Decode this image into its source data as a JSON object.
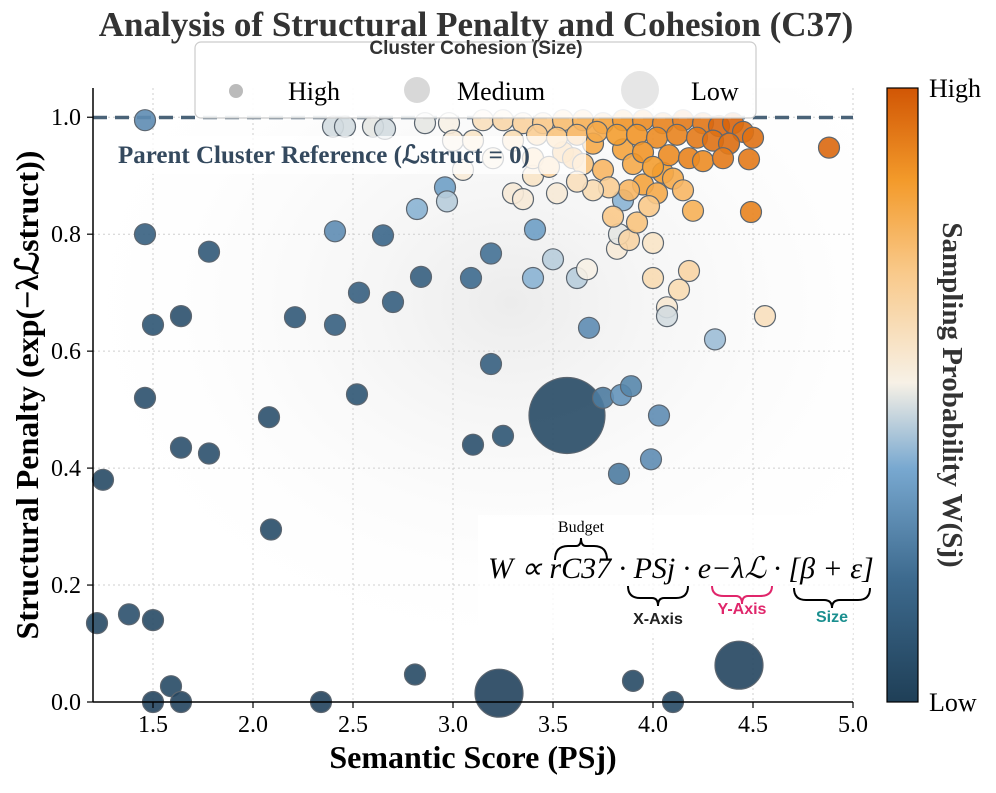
{
  "chart_data": {
    "type": "scatter",
    "title": "Analysis of Structural Penalty and Cohesion (C37)",
    "xlabel": "Semantic Score (PSj)",
    "ylabel": "Structural Penalty (exp(−λℒstruct))",
    "xlim": [
      1.2,
      5.0
    ],
    "ylim": [
      0.0,
      1.05
    ],
    "xticks": [
      "1.5",
      "2.0",
      "2.5",
      "3.0",
      "3.5",
      "4.0",
      "4.5",
      "5.0"
    ],
    "yticks": [
      "0.0",
      "0.2",
      "0.4",
      "0.6",
      "0.8",
      "1.0"
    ],
    "grid": true,
    "reference_line": {
      "y": 1.0,
      "label": "Parent Cluster Reference (ℒstruct = 0)"
    },
    "legend": {
      "title": "Cluster Cohesion (Size)",
      "entries": [
        "High",
        "Medium",
        "Low"
      ],
      "placement": "top"
    },
    "colorbar": {
      "label": "Sampling Probability W(Sj)",
      "high": "High",
      "low": "Low"
    },
    "annotation": {
      "formula": "W ∝ rC37 · PSj · e−λℒ · [β + ε]",
      "budget": "Budget",
      "x_axis": "X-Axis",
      "y_axis": "Y-Axis",
      "size": "Size"
    },
    "points": [
      {
        "x": 3.57,
        "y": 0.49,
        "w": 0.05,
        "s": "XL"
      },
      {
        "x": 3.23,
        "y": 0.015,
        "w": 0.02,
        "s": "L"
      },
      {
        "x": 4.43,
        "y": 0.063,
        "w": 0.03,
        "s": "L"
      },
      {
        "x": 2.34,
        "y": 0.0,
        "w": 0.02,
        "s": "S"
      },
      {
        "x": 1.46,
        "y": 0.995,
        "w": 0.3,
        "s": "S"
      },
      {
        "x": 1.46,
        "y": 0.8,
        "w": 0.15,
        "s": "S"
      },
      {
        "x": 1.5,
        "y": 0.645,
        "w": 0.1,
        "s": "S"
      },
      {
        "x": 1.64,
        "y": 0.66,
        "w": 0.08,
        "s": "S"
      },
      {
        "x": 1.78,
        "y": 0.77,
        "w": 0.12,
        "s": "S"
      },
      {
        "x": 1.46,
        "y": 0.52,
        "w": 0.08,
        "s": "S"
      },
      {
        "x": 1.64,
        "y": 0.435,
        "w": 0.08,
        "s": "S"
      },
      {
        "x": 1.78,
        "y": 0.425,
        "w": 0.08,
        "s": "S"
      },
      {
        "x": 1.25,
        "y": 0.38,
        "w": 0.05,
        "s": "S"
      },
      {
        "x": 1.38,
        "y": 0.15,
        "w": 0.08,
        "s": "S"
      },
      {
        "x": 1.22,
        "y": 0.135,
        "w": 0.05,
        "s": "S"
      },
      {
        "x": 1.5,
        "y": 0.14,
        "w": 0.05,
        "s": "S"
      },
      {
        "x": 1.59,
        "y": 0.027,
        "w": 0.05,
        "s": "S"
      },
      {
        "x": 1.5,
        "y": 0.0,
        "w": 0.03,
        "s": "S"
      },
      {
        "x": 1.64,
        "y": 0.0,
        "w": 0.03,
        "s": "S"
      },
      {
        "x": 2.08,
        "y": 0.487,
        "w": 0.08,
        "s": "S"
      },
      {
        "x": 2.09,
        "y": 0.295,
        "w": 0.06,
        "s": "S"
      },
      {
        "x": 2.21,
        "y": 0.658,
        "w": 0.12,
        "s": "S"
      },
      {
        "x": 2.41,
        "y": 0.805,
        "w": 0.3,
        "s": "S"
      },
      {
        "x": 2.41,
        "y": 0.645,
        "w": 0.15,
        "s": "S"
      },
      {
        "x": 2.52,
        "y": 0.526,
        "w": 0.1,
        "s": "S"
      },
      {
        "x": 2.53,
        "y": 0.7,
        "w": 0.15,
        "s": "S"
      },
      {
        "x": 2.65,
        "y": 0.798,
        "w": 0.18,
        "s": "S"
      },
      {
        "x": 2.7,
        "y": 0.684,
        "w": 0.15,
        "s": "S"
      },
      {
        "x": 2.81,
        "y": 0.047,
        "w": 0.05,
        "s": "S"
      },
      {
        "x": 2.84,
        "y": 0.727,
        "w": 0.15,
        "s": "S"
      },
      {
        "x": 2.82,
        "y": 0.843,
        "w": 0.4,
        "s": "S"
      },
      {
        "x": 2.4,
        "y": 0.984,
        "w": 0.48,
        "s": "S"
      },
      {
        "x": 2.46,
        "y": 0.984,
        "w": 0.48,
        "s": "S"
      },
      {
        "x": 2.6,
        "y": 0.984,
        "w": 0.5,
        "s": "S"
      },
      {
        "x": 2.66,
        "y": 0.98,
        "w": 0.48,
        "s": "S"
      },
      {
        "x": 2.86,
        "y": 0.99,
        "w": 0.5,
        "s": "S"
      },
      {
        "x": 2.98,
        "y": 0.99,
        "w": 0.52,
        "s": "S"
      },
      {
        "x": 2.96,
        "y": 0.88,
        "w": 0.35,
        "s": "S"
      },
      {
        "x": 2.97,
        "y": 0.856,
        "w": 0.45,
        "s": "S"
      },
      {
        "x": 3.0,
        "y": 0.96,
        "w": 0.55,
        "s": "S"
      },
      {
        "x": 3.05,
        "y": 0.91,
        "w": 0.55,
        "s": "S"
      },
      {
        "x": 3.09,
        "y": 0.725,
        "w": 0.2,
        "s": "S"
      },
      {
        "x": 3.1,
        "y": 0.44,
        "w": 0.08,
        "s": "S"
      },
      {
        "x": 3.19,
        "y": 0.578,
        "w": 0.15,
        "s": "S"
      },
      {
        "x": 3.19,
        "y": 0.767,
        "w": 0.22,
        "s": "S"
      },
      {
        "x": 3.25,
        "y": 0.455,
        "w": 0.1,
        "s": "S"
      },
      {
        "x": 3.3,
        "y": 0.87,
        "w": 0.55,
        "s": "S"
      },
      {
        "x": 3.35,
        "y": 0.86,
        "w": 0.55,
        "s": "S"
      },
      {
        "x": 3.4,
        "y": 0.725,
        "w": 0.4,
        "s": "S"
      },
      {
        "x": 3.41,
        "y": 0.808,
        "w": 0.35,
        "s": "S"
      },
      {
        "x": 3.4,
        "y": 0.9,
        "w": 0.58,
        "s": "S"
      },
      {
        "x": 3.5,
        "y": 0.757,
        "w": 0.45,
        "s": "S"
      },
      {
        "x": 3.52,
        "y": 0.87,
        "w": 0.55,
        "s": "S"
      },
      {
        "x": 3.62,
        "y": 0.725,
        "w": 0.45,
        "s": "S"
      },
      {
        "x": 3.67,
        "y": 0.74,
        "w": 0.52,
        "s": "S"
      },
      {
        "x": 3.68,
        "y": 0.64,
        "w": 0.3,
        "s": "S"
      },
      {
        "x": 3.75,
        "y": 0.52,
        "w": 0.25,
        "s": "S"
      },
      {
        "x": 3.83,
        "y": 0.39,
        "w": 0.25,
        "s": "S"
      },
      {
        "x": 3.84,
        "y": 0.525,
        "w": 0.32,
        "s": "S"
      },
      {
        "x": 3.89,
        "y": 0.54,
        "w": 0.28,
        "s": "S"
      },
      {
        "x": 3.9,
        "y": 0.036,
        "w": 0.05,
        "s": "S"
      },
      {
        "x": 4.03,
        "y": 0.49,
        "w": 0.3,
        "s": "S"
      },
      {
        "x": 3.99,
        "y": 0.415,
        "w": 0.3,
        "s": "S"
      },
      {
        "x": 4.1,
        "y": 0.0,
        "w": 0.05,
        "s": "S"
      },
      {
        "x": 3.82,
        "y": 0.775,
        "w": 0.55,
        "s": "S"
      },
      {
        "x": 3.83,
        "y": 0.8,
        "w": 0.5,
        "s": "S"
      },
      {
        "x": 3.85,
        "y": 0.858,
        "w": 0.4,
        "s": "S"
      },
      {
        "x": 3.8,
        "y": 0.83,
        "w": 0.7,
        "s": "S"
      },
      {
        "x": 3.88,
        "y": 0.79,
        "w": 0.65,
        "s": "S"
      },
      {
        "x": 3.92,
        "y": 0.82,
        "w": 0.72,
        "s": "S"
      },
      {
        "x": 4.0,
        "y": 0.785,
        "w": 0.58,
        "s": "S"
      },
      {
        "x": 4.0,
        "y": 0.725,
        "w": 0.62,
        "s": "S"
      },
      {
        "x": 4.07,
        "y": 0.675,
        "w": 0.56,
        "s": "S"
      },
      {
        "x": 4.07,
        "y": 0.66,
        "w": 0.48,
        "s": "S"
      },
      {
        "x": 4.13,
        "y": 0.705,
        "w": 0.62,
        "s": "S"
      },
      {
        "x": 4.18,
        "y": 0.737,
        "w": 0.65,
        "s": "S"
      },
      {
        "x": 4.31,
        "y": 0.62,
        "w": 0.42,
        "s": "S"
      },
      {
        "x": 4.56,
        "y": 0.66,
        "w": 0.6,
        "s": "S"
      },
      {
        "x": 4.49,
        "y": 0.838,
        "w": 0.9,
        "s": "S"
      },
      {
        "x": 4.88,
        "y": 0.948,
        "w": 0.96,
        "s": "S"
      },
      {
        "x": 4.48,
        "y": 0.928,
        "w": 0.92,
        "s": "S"
      },
      {
        "x": 3.55,
        "y": 0.94,
        "w": 0.75,
        "s": "S"
      },
      {
        "x": 3.6,
        "y": 0.93,
        "w": 0.78,
        "s": "S"
      },
      {
        "x": 3.65,
        "y": 0.92,
        "w": 0.72,
        "s": "S"
      },
      {
        "x": 3.7,
        "y": 0.955,
        "w": 0.8,
        "s": "S"
      },
      {
        "x": 3.75,
        "y": 0.91,
        "w": 0.76,
        "s": "S"
      },
      {
        "x": 3.85,
        "y": 0.945,
        "w": 0.82,
        "s": "S"
      },
      {
        "x": 3.9,
        "y": 0.92,
        "w": 0.8,
        "s": "S"
      },
      {
        "x": 3.95,
        "y": 0.885,
        "w": 0.82,
        "s": "S"
      },
      {
        "x": 4.05,
        "y": 0.905,
        "w": 0.84,
        "s": "S"
      },
      {
        "x": 4.1,
        "y": 0.895,
        "w": 0.8,
        "s": "S"
      },
      {
        "x": 4.15,
        "y": 0.875,
        "w": 0.76,
        "s": "S"
      },
      {
        "x": 4.2,
        "y": 0.84,
        "w": 0.78,
        "s": "S"
      },
      {
        "x": 4.02,
        "y": 0.87,
        "w": 0.8,
        "s": "S"
      },
      {
        "x": 3.98,
        "y": 0.848,
        "w": 0.7,
        "s": "S"
      },
      {
        "x": 3.88,
        "y": 0.875,
        "w": 0.76,
        "s": "S"
      },
      {
        "x": 3.78,
        "y": 0.88,
        "w": 0.68,
        "s": "S"
      },
      {
        "x": 3.7,
        "y": 0.875,
        "w": 0.62,
        "s": "S"
      },
      {
        "x": 3.62,
        "y": 0.89,
        "w": 0.6,
        "s": "S"
      },
      {
        "x": 3.15,
        "y": 0.995,
        "w": 0.6,
        "s": "S"
      },
      {
        "x": 3.25,
        "y": 0.995,
        "w": 0.64,
        "s": "S"
      },
      {
        "x": 3.35,
        "y": 0.99,
        "w": 0.66,
        "s": "S"
      },
      {
        "x": 3.45,
        "y": 0.99,
        "w": 0.7,
        "s": "S"
      },
      {
        "x": 3.55,
        "y": 0.995,
        "w": 0.74,
        "s": "S"
      },
      {
        "x": 3.65,
        "y": 0.995,
        "w": 0.78,
        "s": "S"
      },
      {
        "x": 3.75,
        "y": 0.99,
        "w": 0.82,
        "s": "S"
      },
      {
        "x": 3.85,
        "y": 0.995,
        "w": 0.86,
        "s": "S"
      },
      {
        "x": 3.95,
        "y": 0.995,
        "w": 0.88,
        "s": "S"
      },
      {
        "x": 4.05,
        "y": 0.99,
        "w": 0.9,
        "s": "S"
      },
      {
        "x": 4.15,
        "y": 0.995,
        "w": 0.92,
        "s": "S"
      },
      {
        "x": 4.25,
        "y": 0.99,
        "w": 0.93,
        "s": "S"
      },
      {
        "x": 4.33,
        "y": 0.985,
        "w": 0.96,
        "s": "S"
      },
      {
        "x": 4.4,
        "y": 0.99,
        "w": 0.97,
        "s": "S"
      },
      {
        "x": 4.45,
        "y": 0.975,
        "w": 0.95,
        "s": "S"
      },
      {
        "x": 4.5,
        "y": 0.965,
        "w": 0.94,
        "s": "S"
      },
      {
        "x": 3.3,
        "y": 0.96,
        "w": 0.62,
        "s": "S"
      },
      {
        "x": 3.42,
        "y": 0.97,
        "w": 0.68,
        "s": "S"
      },
      {
        "x": 3.52,
        "y": 0.965,
        "w": 0.72,
        "s": "S"
      },
      {
        "x": 3.62,
        "y": 0.97,
        "w": 0.76,
        "s": "S"
      },
      {
        "x": 3.72,
        "y": 0.975,
        "w": 0.8,
        "s": "S"
      },
      {
        "x": 3.82,
        "y": 0.97,
        "w": 0.84,
        "s": "S"
      },
      {
        "x": 3.92,
        "y": 0.97,
        "w": 0.86,
        "s": "S"
      },
      {
        "x": 4.02,
        "y": 0.965,
        "w": 0.88,
        "s": "S"
      },
      {
        "x": 4.12,
        "y": 0.97,
        "w": 0.9,
        "s": "S"
      },
      {
        "x": 4.22,
        "y": 0.965,
        "w": 0.92,
        "s": "S"
      },
      {
        "x": 4.3,
        "y": 0.96,
        "w": 0.94,
        "s": "S"
      },
      {
        "x": 4.38,
        "y": 0.955,
        "w": 0.95,
        "s": "S"
      },
      {
        "x": 3.95,
        "y": 0.94,
        "w": 0.86,
        "s": "S"
      },
      {
        "x": 4.08,
        "y": 0.935,
        "w": 0.88,
        "s": "S"
      },
      {
        "x": 4.18,
        "y": 0.93,
        "w": 0.9,
        "s": "S"
      },
      {
        "x": 4.25,
        "y": 0.925,
        "w": 0.88,
        "s": "S"
      },
      {
        "x": 4.35,
        "y": 0.93,
        "w": 0.92,
        "s": "S"
      },
      {
        "x": 4.0,
        "y": 0.915,
        "w": 0.84,
        "s": "S"
      },
      {
        "x": 3.4,
        "y": 0.93,
        "w": 0.64,
        "s": "S"
      },
      {
        "x": 3.48,
        "y": 0.915,
        "w": 0.66,
        "s": "S"
      },
      {
        "x": 3.2,
        "y": 0.93,
        "w": 0.56,
        "s": "S"
      },
      {
        "x": 3.1,
        "y": 0.96,
        "w": 0.58,
        "s": "S"
      }
    ]
  }
}
